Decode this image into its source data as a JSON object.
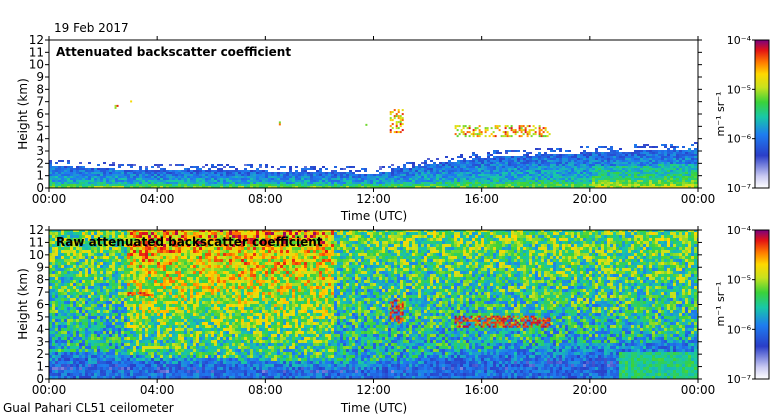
{
  "header": {
    "date": "19 Feb 2017"
  },
  "footer": {
    "station": "Gual Pahari CL51 ceilometer"
  },
  "chart_data": [
    {
      "type": "heatmap",
      "title": "Attenuated backscatter coefficient",
      "xlabel": "Time (UTC)",
      "ylabel": "Height (km)",
      "x_ticks": [
        "00:00",
        "04:00",
        "08:00",
        "12:00",
        "16:00",
        "20:00",
        "00:00"
      ],
      "y_ticks": [
        "0",
        "1",
        "2",
        "3",
        "4",
        "5",
        "6",
        "7",
        "8",
        "9",
        "10",
        "11",
        "12"
      ],
      "xlim_hours": [
        0,
        24
      ],
      "ylim_km": [
        0,
        12
      ],
      "colorbar": {
        "label": "m⁻¹ sr⁻¹",
        "ticks": [
          "10⁻⁷",
          "10⁻⁶",
          "10⁻⁵",
          "10⁻⁴"
        ],
        "range_log10": [
          -7,
          -4
        ]
      },
      "features": {
        "boundary_layer_top_km": [
          [
            0,
            1.7
          ],
          [
            4,
            1.3
          ],
          [
            8,
            1.3
          ],
          [
            12,
            1.1
          ],
          [
            14,
            1.8
          ],
          [
            16,
            2.4
          ],
          [
            20,
            2.8
          ],
          [
            24,
            3.1
          ]
        ],
        "clouds": [
          {
            "time_h": [
              2.35,
              2.5
            ],
            "height_km": [
              6.5,
              6.9
            ]
          },
          {
            "time_h": [
              3.0,
              3.05
            ],
            "height_km": [
              7.0,
              7.1
            ]
          },
          {
            "time_h": [
              8.5,
              8.6
            ],
            "height_km": [
              5.2,
              5.4
            ]
          },
          {
            "time_h": [
              11.7,
              11.8
            ],
            "height_km": [
              4.9,
              5.2
            ]
          },
          {
            "time_h": [
              12.6,
              13.1
            ],
            "height_km": [
              4.5,
              6.4
            ]
          },
          {
            "time_h": [
              15.0,
              18.5
            ],
            "height_km": [
              4.2,
              5.1
            ]
          }
        ]
      }
    },
    {
      "type": "heatmap",
      "title": "Raw attenuated backscatter coefficient",
      "xlabel": "Time (UTC)",
      "ylabel": "Height (km)",
      "x_ticks": [
        "00:00",
        "04:00",
        "08:00",
        "12:00",
        "16:00",
        "20:00",
        "00:00"
      ],
      "y_ticks": [
        "0",
        "1",
        "2",
        "3",
        "4",
        "5",
        "6",
        "7",
        "8",
        "9",
        "10",
        "11",
        "12"
      ],
      "xlim_hours": [
        0,
        24
      ],
      "ylim_km": [
        0,
        12
      ],
      "colorbar": {
        "label": "m⁻¹ sr⁻¹",
        "ticks": [
          "10⁻⁷",
          "10⁻⁶",
          "10⁻⁵",
          "10⁻⁴"
        ],
        "range_log10": [
          -7,
          -4
        ]
      },
      "features": {
        "noisy_high_signal_period_h": [
          2.8,
          10.5
        ],
        "clouds": [
          {
            "time_h": [
              2.9,
              3.8
            ],
            "height_km": [
              6.7,
              7.0
            ]
          },
          {
            "time_h": [
              12.6,
              13.1
            ],
            "height_km": [
              4.5,
              6.4
            ]
          },
          {
            "time_h": [
              15.0,
              18.5
            ],
            "height_km": [
              4.2,
              5.1
            ]
          }
        ]
      }
    }
  ]
}
